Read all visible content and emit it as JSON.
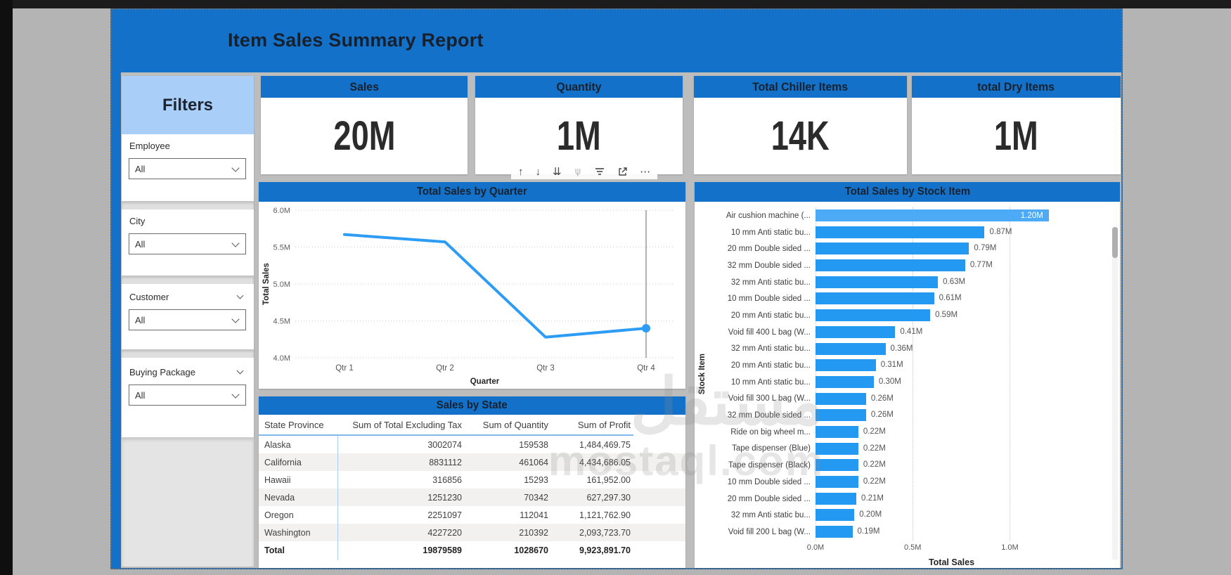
{
  "colors": {
    "canvas_blue": "#1371C9",
    "filters_header_blue": "#A9CFF9",
    "bar_blue": "#2499F1",
    "bar_highlight_blue": "#4CAAF6",
    "line_blue": "#2D9CF4",
    "header_text": "#18222E",
    "background_gray": "#B4B4B4"
  },
  "report": {
    "title": "Item Sales Summary Report"
  },
  "filters": {
    "title": "Filters",
    "slicers": [
      {
        "label": "Employee",
        "value": "All",
        "header_caret": false
      },
      {
        "label": "City",
        "value": "All",
        "header_caret": false
      },
      {
        "label": "Customer",
        "value": "All",
        "header_caret": true
      },
      {
        "label": "Buying Package",
        "value": "All",
        "header_caret": true
      }
    ]
  },
  "kpis": [
    {
      "title": "Sales",
      "value": "20M"
    },
    {
      "title": "Quantity",
      "value": "1M"
    },
    {
      "title": "Total Chiller Items",
      "value": "14K"
    },
    {
      "title": "total Dry Items",
      "value": "1M"
    }
  ],
  "visual_toolbar": {
    "icons": [
      {
        "name": "drill-up-icon",
        "glyph": "↑",
        "disabled": false,
        "flip": false
      },
      {
        "name": "drill-down-icon",
        "glyph": "↓",
        "disabled": false,
        "flip": false
      },
      {
        "name": "go-to-next-level-icon",
        "glyph": "⇊",
        "disabled": false,
        "flip": false
      },
      {
        "name": "expand-all-levels-icon",
        "glyph": "⋔",
        "disabled": true,
        "flip": true
      },
      {
        "name": "filter-icon",
        "glyph": "svg-filter",
        "disabled": false,
        "flip": false
      },
      {
        "name": "focus-mode-icon",
        "glyph": "svg-focus",
        "disabled": false,
        "flip": false
      },
      {
        "name": "more-options-icon",
        "glyph": "⋯",
        "disabled": false,
        "flip": false
      }
    ]
  },
  "watermark": {
    "arabic": "مستقل",
    "latin": "mostaql.com"
  },
  "chart_data": [
    {
      "type": "line",
      "title": "Total Sales by Quarter",
      "x": [
        "Qtr 1",
        "Qtr 2",
        "Qtr 3",
        "Qtr 4"
      ],
      "values": [
        5.67,
        5.57,
        4.28,
        4.4
      ],
      "unit": "M",
      "xlabel": "Quarter",
      "ylabel": "Total Sales",
      "ylim": [
        4.0,
        6.0
      ],
      "yticks": [
        "4.0M",
        "4.5M",
        "5.0M",
        "5.5M",
        "6.0M"
      ],
      "grid": true,
      "legend": "none",
      "hover_marker": "Qtr 4"
    },
    {
      "type": "bar",
      "orientation": "horizontal",
      "title": "Total Sales by Stock Item",
      "categories": [
        "Air cushion machine (...",
        "10 mm Anti static bu...",
        "20 mm Double sided ...",
        "32 mm Double sided ...",
        "32 mm Anti static bu...",
        "10 mm Double sided ...",
        "20 mm Anti static bu...",
        "Void fill 400 L bag (W...",
        "32 mm Anti static bu...",
        "20 mm Anti static bu...",
        "10 mm Anti static bu...",
        "Void fill 300 L bag (W...",
        "32 mm Double sided ...",
        "Ride on big wheel m...",
        "Tape dispenser (Blue)",
        "Tape dispenser (Black)",
        "10 mm Double sided ...",
        "20 mm Double sided ...",
        "32 mm Anti static bu...",
        "Void fill 200 L bag (W..."
      ],
      "values": [
        1.2,
        0.87,
        0.79,
        0.77,
        0.63,
        0.61,
        0.59,
        0.41,
        0.36,
        0.31,
        0.3,
        0.26,
        0.26,
        0.22,
        0.22,
        0.22,
        0.22,
        0.21,
        0.2,
        0.19
      ],
      "data_labels": [
        "1.20M",
        "0.87M",
        "0.79M",
        "0.77M",
        "0.63M",
        "0.61M",
        "0.59M",
        "0.41M",
        "0.36M",
        "0.31M",
        "0.30M",
        "0.26M",
        "0.26M",
        "0.22M",
        "0.22M",
        "0.22M",
        "0.22M",
        "0.21M",
        "0.20M",
        "0.19M"
      ],
      "xlabel": "Total Sales",
      "ylabel": "Stock Item",
      "xticks": [
        "0.0M",
        "0.5M",
        "1.0M"
      ],
      "xtick_values": [
        0,
        0.5,
        1.0
      ],
      "xlim": [
        0,
        1.4
      ],
      "grid": true,
      "highlighted_index": 0,
      "scrollbar": true
    },
    {
      "type": "table",
      "title": "Sales by State",
      "columns": [
        "State Province",
        "Sum of Total Excluding Tax",
        "Sum of Quantity",
        "Sum of Profit"
      ],
      "rows": [
        [
          "Alaska",
          "3002074",
          "159538",
          "1,484,469.75"
        ],
        [
          "California",
          "8831112",
          "461064",
          "4,434,686.05"
        ],
        [
          "Hawaii",
          "316856",
          "15293",
          "161,952.00"
        ],
        [
          "Nevada",
          "1251230",
          "70342",
          "627,297.30"
        ],
        [
          "Oregon",
          "2251097",
          "112041",
          "1,121,762.90"
        ],
        [
          "Washington",
          "4227220",
          "210392",
          "2,093,723.70"
        ]
      ],
      "total_row": [
        "Total",
        "19879589",
        "1028670",
        "9,923,891.70"
      ]
    }
  ]
}
